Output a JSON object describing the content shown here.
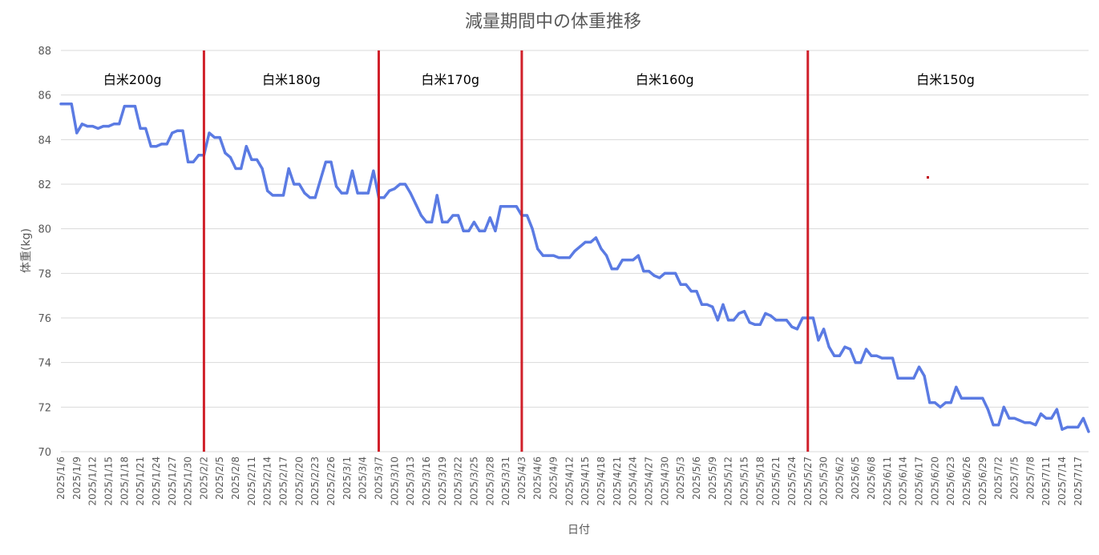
{
  "chart_data": {
    "type": "line",
    "title": "減量期間中の体重推移",
    "xlabel": "日付",
    "ylabel": "体重(kg)",
    "ylim": [
      70,
      88
    ],
    "yticks": [
      70,
      72,
      74,
      76,
      78,
      80,
      82,
      84,
      86,
      88
    ],
    "grid": true,
    "line_color": "#5b7be3",
    "divider_color": "#d0202a",
    "xtick_labels": [
      "2025/1/6",
      "2025/1/9",
      "2025/1/12",
      "2025/1/15",
      "2025/1/18",
      "2025/1/21",
      "2025/1/24",
      "2025/1/27",
      "2025/1/30",
      "2025/2/2",
      "2025/2/5",
      "2025/2/8",
      "2025/2/11",
      "2025/2/14",
      "2025/2/17",
      "2025/2/20",
      "2025/2/23",
      "2025/2/26",
      "2025/3/1",
      "2025/3/4",
      "2025/3/7",
      "2025/3/10",
      "2025/3/13",
      "2025/3/16",
      "2025/3/19",
      "2025/3/22",
      "2025/3/25",
      "2025/3/28",
      "2025/3/31",
      "2025/4/3",
      "2025/4/6",
      "2025/4/9",
      "2025/4/12",
      "2025/4/15",
      "2025/4/18",
      "2025/4/21",
      "2025/4/24",
      "2025/4/27",
      "2025/4/30",
      "2025/5/3",
      "2025/5/6",
      "2025/5/9",
      "2025/5/12",
      "2025/5/15",
      "2025/5/18",
      "2025/5/21",
      "2025/5/24",
      "2025/5/27",
      "2025/5/30",
      "2025/6/2",
      "2025/6/5",
      "2025/6/8",
      "2025/6/11",
      "2025/6/14",
      "2025/6/17",
      "2025/6/20",
      "2025/6/23",
      "2025/6/26",
      "2025/6/29",
      "2025/7/2",
      "2025/7/5",
      "2025/7/8",
      "2025/7/11",
      "2025/7/14",
      "2025/7/17"
    ],
    "dividers": [
      "2025/2/2",
      "2025/3/7",
      "2025/4/3",
      "2025/5/27"
    ],
    "segments": [
      {
        "label": "白米200g",
        "from": "2025/1/6",
        "to": "2025/2/2"
      },
      {
        "label": "白米180g",
        "from": "2025/2/2",
        "to": "2025/3/7"
      },
      {
        "label": "白米170g",
        "from": "2025/3/7",
        "to": "2025/4/3"
      },
      {
        "label": "白米160g",
        "from": "2025/4/3",
        "to": "2025/5/27"
      },
      {
        "label": "白米150g",
        "from": "2025/5/27",
        "to": "2025/7/18"
      }
    ],
    "series": [
      {
        "values": [
          [
            "2025/1/6",
            85.6
          ],
          [
            "2025/1/8",
            85.6
          ],
          [
            "2025/1/9",
            84.3
          ],
          [
            "2025/1/10",
            84.7
          ],
          [
            "2025/1/11",
            84.6
          ],
          [
            "2025/1/12",
            84.6
          ],
          [
            "2025/1/13",
            84.5
          ],
          [
            "2025/1/14",
            84.6
          ],
          [
            "2025/1/15",
            84.6
          ],
          [
            "2025/1/16",
            84.7
          ],
          [
            "2025/1/17",
            84.7
          ],
          [
            "2025/1/18",
            85.5
          ],
          [
            "2025/1/20",
            85.5
          ],
          [
            "2025/1/21",
            84.5
          ],
          [
            "2025/1/22",
            84.5
          ],
          [
            "2025/1/23",
            83.7
          ],
          [
            "2025/1/24",
            83.7
          ],
          [
            "2025/1/25",
            83.8
          ],
          [
            "2025/1/26",
            83.8
          ],
          [
            "2025/1/27",
            84.3
          ],
          [
            "2025/1/28",
            84.4
          ],
          [
            "2025/1/29",
            84.4
          ],
          [
            "2025/1/30",
            83.0
          ],
          [
            "2025/1/31",
            83.0
          ],
          [
            "2025/2/1",
            83.3
          ],
          [
            "2025/2/2",
            83.3
          ],
          [
            "2025/2/3",
            84.3
          ],
          [
            "2025/2/4",
            84.1
          ],
          [
            "2025/2/5",
            84.1
          ],
          [
            "2025/2/6",
            83.4
          ],
          [
            "2025/2/7",
            83.2
          ],
          [
            "2025/2/8",
            82.7
          ],
          [
            "2025/2/9",
            82.7
          ],
          [
            "2025/2/10",
            83.7
          ],
          [
            "2025/2/11",
            83.1
          ],
          [
            "2025/2/12",
            83.1
          ],
          [
            "2025/2/13",
            82.7
          ],
          [
            "2025/2/14",
            81.7
          ],
          [
            "2025/2/15",
            81.5
          ],
          [
            "2025/2/16",
            81.5
          ],
          [
            "2025/2/17",
            81.5
          ],
          [
            "2025/2/18",
            82.7
          ],
          [
            "2025/2/19",
            82.0
          ],
          [
            "2025/2/20",
            82.0
          ],
          [
            "2025/2/21",
            81.6
          ],
          [
            "2025/2/22",
            81.4
          ],
          [
            "2025/2/23",
            81.4
          ],
          [
            "2025/2/24",
            82.2
          ],
          [
            "2025/2/25",
            83.0
          ],
          [
            "2025/2/26",
            83.0
          ],
          [
            "2025/2/27",
            81.9
          ],
          [
            "2025/2/28",
            81.6
          ],
          [
            "2025/3/1",
            81.6
          ],
          [
            "2025/3/2",
            82.6
          ],
          [
            "2025/3/3",
            81.6
          ],
          [
            "2025/3/4",
            81.6
          ],
          [
            "2025/3/5",
            81.6
          ],
          [
            "2025/3/6",
            82.6
          ],
          [
            "2025/3/7",
            81.4
          ],
          [
            "2025/3/8",
            81.4
          ],
          [
            "2025/3/9",
            81.7
          ],
          [
            "2025/3/10",
            81.8
          ],
          [
            "2025/3/11",
            82.0
          ],
          [
            "2025/3/12",
            82.0
          ],
          [
            "2025/3/13",
            81.6
          ],
          [
            "2025/3/14",
            81.1
          ],
          [
            "2025/3/15",
            80.6
          ],
          [
            "2025/3/16",
            80.3
          ],
          [
            "2025/3/17",
            80.3
          ],
          [
            "2025/3/18",
            81.5
          ],
          [
            "2025/3/19",
            80.3
          ],
          [
            "2025/3/20",
            80.3
          ],
          [
            "2025/3/21",
            80.6
          ],
          [
            "2025/3/22",
            80.6
          ],
          [
            "2025/3/23",
            79.9
          ],
          [
            "2025/3/24",
            79.9
          ],
          [
            "2025/3/25",
            80.3
          ],
          [
            "2025/3/26",
            79.9
          ],
          [
            "2025/3/27",
            79.9
          ],
          [
            "2025/3/28",
            80.5
          ],
          [
            "2025/3/29",
            79.9
          ],
          [
            "2025/3/30",
            81.0
          ],
          [
            "2025/3/31",
            81.0
          ],
          [
            "2025/4/2",
            81.0
          ],
          [
            "2025/4/3",
            80.6
          ],
          [
            "2025/4/4",
            80.6
          ],
          [
            "2025/4/5",
            80.0
          ],
          [
            "2025/4/6",
            79.1
          ],
          [
            "2025/4/7",
            78.8
          ],
          [
            "2025/4/8",
            78.8
          ],
          [
            "2025/4/9",
            78.8
          ],
          [
            "2025/4/10",
            78.7
          ],
          [
            "2025/4/11",
            78.7
          ],
          [
            "2025/4/12",
            78.7
          ],
          [
            "2025/4/13",
            79.0
          ],
          [
            "2025/4/14",
            79.2
          ],
          [
            "2025/4/15",
            79.4
          ],
          [
            "2025/4/16",
            79.4
          ],
          [
            "2025/4/17",
            79.6
          ],
          [
            "2025/4/18",
            79.1
          ],
          [
            "2025/4/19",
            78.8
          ],
          [
            "2025/4/20",
            78.2
          ],
          [
            "2025/4/21",
            78.2
          ],
          [
            "2025/4/22",
            78.6
          ],
          [
            "2025/4/23",
            78.6
          ],
          [
            "2025/4/24",
            78.6
          ],
          [
            "2025/4/25",
            78.8
          ],
          [
            "2025/4/26",
            78.1
          ],
          [
            "2025/4/27",
            78.1
          ],
          [
            "2025/4/28",
            77.9
          ],
          [
            "2025/4/29",
            77.8
          ],
          [
            "2025/4/30",
            78.0
          ],
          [
            "2025/5/1",
            78.0
          ],
          [
            "2025/5/2",
            78.0
          ],
          [
            "2025/5/3",
            77.5
          ],
          [
            "2025/5/4",
            77.5
          ],
          [
            "2025/5/5",
            77.2
          ],
          [
            "2025/5/6",
            77.2
          ],
          [
            "2025/5/7",
            76.6
          ],
          [
            "2025/5/8",
            76.6
          ],
          [
            "2025/5/9",
            76.5
          ],
          [
            "2025/5/10",
            75.9
          ],
          [
            "2025/5/11",
            76.6
          ],
          [
            "2025/5/12",
            75.9
          ],
          [
            "2025/5/13",
            75.9
          ],
          [
            "2025/5/14",
            76.2
          ],
          [
            "2025/5/15",
            76.3
          ],
          [
            "2025/5/16",
            75.8
          ],
          [
            "2025/5/17",
            75.7
          ],
          [
            "2025/5/18",
            75.7
          ],
          [
            "2025/5/19",
            76.2
          ],
          [
            "2025/5/20",
            76.1
          ],
          [
            "2025/5/21",
            75.9
          ],
          [
            "2025/5/22",
            75.9
          ],
          [
            "2025/5/23",
            75.9
          ],
          [
            "2025/5/24",
            75.6
          ],
          [
            "2025/5/25",
            75.5
          ],
          [
            "2025/5/26",
            76.0
          ],
          [
            "2025/5/27",
            76.0
          ],
          [
            "2025/5/28",
            76.0
          ],
          [
            "2025/5/29",
            75.0
          ],
          [
            "2025/5/30",
            75.5
          ],
          [
            "2025/5/31",
            74.7
          ],
          [
            "2025/6/1",
            74.3
          ],
          [
            "2025/6/2",
            74.3
          ],
          [
            "2025/6/3",
            74.7
          ],
          [
            "2025/6/4",
            74.6
          ],
          [
            "2025/6/5",
            74.0
          ],
          [
            "2025/6/6",
            74.0
          ],
          [
            "2025/6/7",
            74.6
          ],
          [
            "2025/6/8",
            74.3
          ],
          [
            "2025/6/9",
            74.3
          ],
          [
            "2025/6/10",
            74.2
          ],
          [
            "2025/6/11",
            74.2
          ],
          [
            "2025/6/12",
            74.2
          ],
          [
            "2025/6/13",
            73.3
          ],
          [
            "2025/6/14",
            73.3
          ],
          [
            "2025/6/15",
            73.3
          ],
          [
            "2025/6/16",
            73.3
          ],
          [
            "2025/6/17",
            73.8
          ],
          [
            "2025/6/18",
            73.4
          ],
          [
            "2025/6/19",
            72.2
          ],
          [
            "2025/6/20",
            72.2
          ],
          [
            "2025/6/21",
            72.0
          ],
          [
            "2025/6/22",
            72.2
          ],
          [
            "2025/6/23",
            72.2
          ],
          [
            "2025/6/24",
            72.9
          ],
          [
            "2025/6/25",
            72.4
          ],
          [
            "2025/6/26",
            72.4
          ],
          [
            "2025/6/27",
            72.4
          ],
          [
            "2025/6/28",
            72.4
          ],
          [
            "2025/6/29",
            72.4
          ],
          [
            "2025/6/30",
            71.9
          ],
          [
            "2025/7/1",
            71.2
          ],
          [
            "2025/7/2",
            71.2
          ],
          [
            "2025/7/3",
            72.0
          ],
          [
            "2025/7/4",
            71.5
          ],
          [
            "2025/7/5",
            71.5
          ],
          [
            "2025/7/6",
            71.4
          ],
          [
            "2025/7/7",
            71.3
          ],
          [
            "2025/7/8",
            71.3
          ],
          [
            "2025/7/9",
            71.2
          ],
          [
            "2025/7/10",
            71.7
          ],
          [
            "2025/7/11",
            71.5
          ],
          [
            "2025/7/12",
            71.5
          ],
          [
            "2025/7/13",
            71.9
          ],
          [
            "2025/7/14",
            71.0
          ],
          [
            "2025/7/15",
            71.1
          ],
          [
            "2025/7/16",
            71.1
          ],
          [
            "2025/7/17",
            71.1
          ],
          [
            "2025/7/18",
            71.5
          ],
          [
            "2025/7/19",
            70.9
          ]
        ]
      }
    ]
  }
}
